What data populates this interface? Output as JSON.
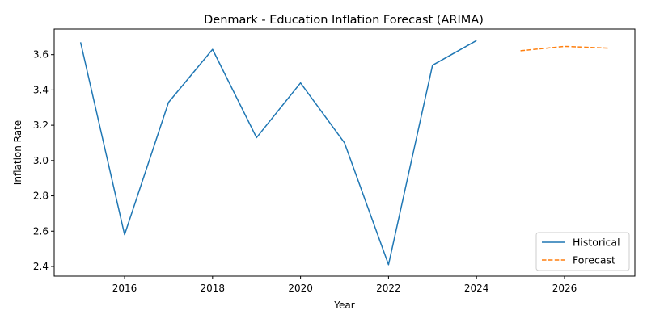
{
  "chart_data": {
    "type": "line",
    "title": "Denmark - Education Inflation Forecast (ARIMA)",
    "xlabel": "Year",
    "ylabel": "Inflation Rate",
    "xlim": [
      2014.4,
      2027.6
    ],
    "ylim": [
      2.345,
      3.745
    ],
    "xticks": [
      2016,
      2018,
      2020,
      2022,
      2024,
      2026
    ],
    "yticks": [
      2.4,
      2.6,
      2.8,
      3.0,
      3.2,
      3.4,
      3.6
    ],
    "grid": false,
    "legend_position": "bottom-right",
    "series": [
      {
        "name": "Historical",
        "color": "#1f77b4",
        "style": "solid",
        "x": [
          2015,
          2016,
          2017,
          2018,
          2019,
          2020,
          2021,
          2022,
          2023,
          2024
        ],
        "y": [
          3.67,
          2.58,
          3.33,
          3.63,
          3.13,
          3.44,
          3.1,
          2.41,
          3.54,
          3.68
        ]
      },
      {
        "name": "Forecast",
        "color": "#ff7f0e",
        "style": "dashed",
        "x": [
          2025,
          2026,
          2027
        ],
        "y": [
          3.622,
          3.647,
          3.637
        ]
      }
    ]
  }
}
